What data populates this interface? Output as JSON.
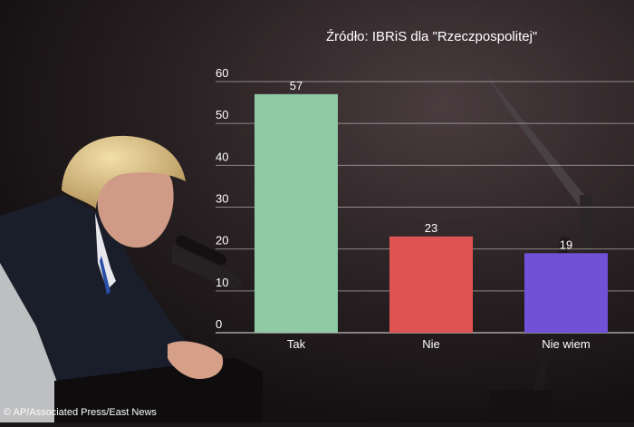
{
  "chart_data": {
    "type": "bar",
    "title": "",
    "source": "Źródło: IBRiS dla \"Rzeczpospolitej\"",
    "categories": [
      "Tak",
      "Nie",
      "Nie wiem"
    ],
    "values": [
      57,
      23,
      19
    ],
    "colors": [
      "#8fcaa4",
      "#e05353",
      "#7151d8"
    ],
    "ylim": [
      0,
      60
    ],
    "yticks": [
      0,
      10,
      20,
      30,
      40,
      50,
      60
    ],
    "xlabel": "",
    "ylabel": "",
    "grid": true,
    "legend": "none"
  },
  "photo": {
    "credit": "© AP/Associated Press/East News"
  }
}
